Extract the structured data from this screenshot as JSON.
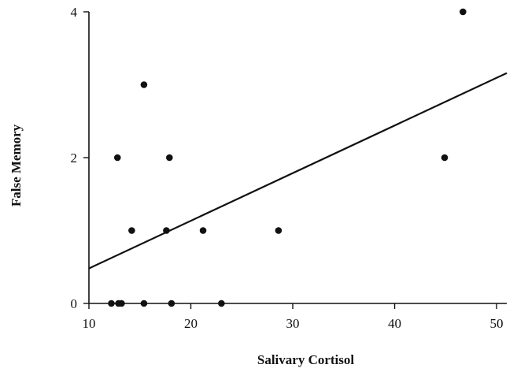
{
  "chart_data": {
    "type": "scatter",
    "title": "",
    "xlabel": "Salivary Cortisol",
    "ylabel": "False Memory",
    "xlim": [
      10,
      51
    ],
    "ylim": [
      0,
      4
    ],
    "x_ticks": [
      10,
      20,
      30,
      40,
      50
    ],
    "y_ticks": [
      0,
      2,
      4
    ],
    "grid": false,
    "legend": "none",
    "points": [
      {
        "x": 12.2,
        "y": 0
      },
      {
        "x": 12.9,
        "y": 0
      },
      {
        "x": 13.2,
        "y": 0
      },
      {
        "x": 15.4,
        "y": 0
      },
      {
        "x": 18.1,
        "y": 0
      },
      {
        "x": 23.0,
        "y": 0
      },
      {
        "x": 14.2,
        "y": 1
      },
      {
        "x": 17.6,
        "y": 1
      },
      {
        "x": 21.2,
        "y": 1
      },
      {
        "x": 28.6,
        "y": 1
      },
      {
        "x": 12.8,
        "y": 2
      },
      {
        "x": 17.9,
        "y": 2
      },
      {
        "x": 44.9,
        "y": 2
      },
      {
        "x": 15.4,
        "y": 3
      },
      {
        "x": 46.7,
        "y": 4
      }
    ],
    "trendline": {
      "x": [
        10,
        51
      ],
      "y": [
        0.48,
        3.16
      ]
    },
    "colors": {
      "points": "#111111",
      "line": "#111111",
      "axis": "#111111"
    }
  }
}
